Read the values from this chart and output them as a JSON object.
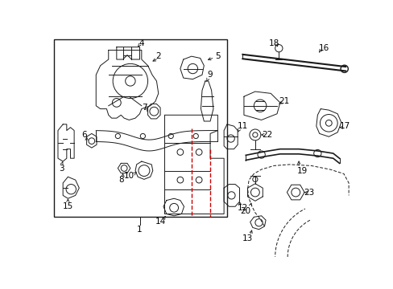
{
  "bg_color": "#ffffff",
  "line_color": "#1a1a1a",
  "red_line_color": "#cc0000",
  "label_color": "#000000",
  "fig_width": 4.89,
  "fig_height": 3.6,
  "dpi": 100
}
